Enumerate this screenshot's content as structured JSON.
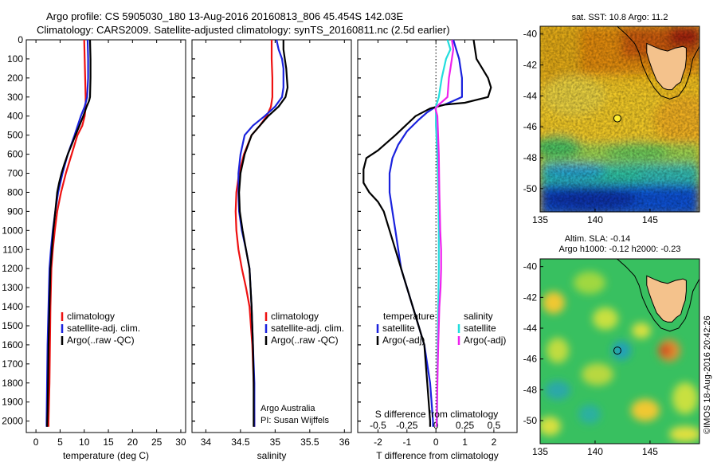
{
  "header": {
    "line1": "Argo profile: CS 5905030_180 13-Aug-2016 20160813_806 45.454S 142.03E",
    "line2": "Climatology: CARS2009. Satellite-adjusted climatology: synTS_20160811.nc (2.5d earlier)"
  },
  "colors": {
    "climatology": "#ee1111",
    "satellite": "#1a22dd",
    "argo": "#000000",
    "salinity_satellite": "#22dddd",
    "salinity_argo": "#ee22ee"
  },
  "chart_data": [
    {
      "type": "line",
      "name": "temperature-profile",
      "xlabel": "temperature (deg C)",
      "ylabel": "",
      "xlim": [
        -2,
        31
      ],
      "ylim": [
        2060,
        0
      ],
      "xticks": [
        0,
        5,
        10,
        15,
        20,
        25,
        30
      ],
      "yticks": [
        0,
        100,
        200,
        300,
        400,
        500,
        600,
        700,
        800,
        900,
        1000,
        1100,
        1200,
        1300,
        1400,
        1500,
        1600,
        1700,
        1800,
        1900,
        2000
      ],
      "legend": [
        "climatology",
        "satellite-adj. clim.",
        "Argo(..raw -QC)"
      ],
      "legend_position": "lower-right",
      "series": [
        {
          "name": "climatology",
          "color_key": "climatology",
          "x": [
            10.0,
            10.1,
            10.2,
            10.3,
            10.3,
            10.1,
            9.6,
            8.6,
            7.4,
            6.2,
            5.2,
            4.4,
            3.9,
            3.5,
            3.2,
            3.0,
            2.9,
            2.8,
            2.7,
            2.6,
            2.6
          ],
          "y": [
            0,
            100,
            200,
            300,
            350,
            400,
            450,
            500,
            600,
            700,
            800,
            900,
            1000,
            1100,
            1200,
            1400,
            1600,
            1800,
            1900,
            2000,
            2030
          ]
        },
        {
          "name": "satellite-adj. clim.",
          "color_key": "satellite",
          "x": [
            10.7,
            10.8,
            10.8,
            10.6,
            10.1,
            9.3,
            8.0,
            6.6,
            5.5,
            4.6,
            4.0,
            3.5,
            3.1,
            2.8,
            2.6,
            2.4,
            2.3,
            2.2,
            2.2
          ],
          "y": [
            0,
            100,
            200,
            300,
            350,
            400,
            500,
            600,
            700,
            800,
            900,
            1000,
            1100,
            1200,
            1400,
            1600,
            1800,
            2000,
            2030
          ]
        },
        {
          "name": "Argo(..raw -QC)",
          "color_key": "argo",
          "x": [
            11.2,
            11.3,
            11.3,
            11.2,
            11.0,
            10.5,
            9.8,
            9.0,
            8.2,
            7.4,
            6.6,
            5.9,
            5.3,
            4.8,
            4.4,
            4.0,
            3.6,
            3.3,
            3.0,
            2.8,
            2.6,
            2.5,
            2.4,
            2.3
          ],
          "y": [
            0,
            100,
            200,
            300,
            320,
            350,
            400,
            450,
            500,
            550,
            600,
            650,
            700,
            750,
            800,
            900,
            1000,
            1100,
            1200,
            1400,
            1600,
            1800,
            1950,
            2030
          ]
        }
      ]
    },
    {
      "type": "line",
      "name": "salinity-profile",
      "xlabel": "salinity",
      "xlim": [
        33.8,
        36.1
      ],
      "ylim": [
        2060,
        0
      ],
      "xticks": [
        34,
        34.5,
        35,
        35.5,
        36
      ],
      "legend": [
        "climatology",
        "satellite-adj. clim.",
        "Argo(..raw -QC)"
      ],
      "legend_position": "lower-right",
      "annotation": [
        "Argo Australia",
        "PI: Susan Wijffels"
      ],
      "series": [
        {
          "name": "climatology",
          "color_key": "climatology",
          "x": [
            34.95,
            34.95,
            34.96,
            34.96,
            34.94,
            34.88,
            34.78,
            34.66,
            34.55,
            34.48,
            34.44,
            34.43,
            34.44,
            34.47,
            34.52,
            34.58,
            34.63,
            34.67,
            34.69,
            34.7,
            34.7
          ],
          "y": [
            0,
            100,
            200,
            300,
            350,
            400,
            450,
            500,
            600,
            700,
            800,
            900,
            1000,
            1100,
            1200,
            1300,
            1400,
            1600,
            1800,
            2000,
            2030
          ]
        },
        {
          "name": "satellite-adj. clim.",
          "color_key": "satellite",
          "x": [
            35.02,
            35.05,
            35.1,
            35.12,
            35.12,
            35.1,
            35.0,
            34.85,
            34.68,
            34.56,
            34.5,
            34.47,
            34.47,
            34.48,
            34.52,
            34.58,
            34.63,
            34.66,
            34.68,
            34.7,
            34.7
          ],
          "y": [
            0,
            50,
            100,
            150,
            250,
            300,
            350,
            400,
            450,
            500,
            600,
            700,
            800,
            900,
            1000,
            1100,
            1200,
            1400,
            1600,
            1800,
            2030
          ]
        },
        {
          "name": "Argo(..raw -QC)",
          "color_key": "argo",
          "x": [
            35.12,
            35.12,
            35.14,
            35.16,
            35.17,
            35.18,
            35.15,
            35.05,
            34.9,
            34.78,
            34.66,
            34.56,
            34.5,
            34.48,
            34.49,
            34.53,
            34.58,
            34.63,
            34.66,
            34.68,
            34.69,
            34.69
          ],
          "y": [
            0,
            50,
            100,
            150,
            200,
            250,
            300,
            350,
            400,
            450,
            500,
            600,
            700,
            800,
            900,
            1000,
            1100,
            1200,
            1400,
            1600,
            1800,
            2030
          ]
        }
      ]
    },
    {
      "type": "line",
      "name": "difference-profile",
      "xlabel": "T difference from climatology",
      "top_label": "S difference from climatology",
      "xlim": [
        -2.7,
        2.8
      ],
      "ylim": [
        2060,
        0
      ],
      "xticks": [
        -2,
        -1,
        0,
        1,
        2
      ],
      "xticks_top": [
        -0.5,
        -0.25,
        0,
        0.25,
        0.5
      ],
      "xticklabels_top": [
        "-0.5",
        "-0.25",
        "0",
        "0.25",
        "0.5"
      ],
      "legend_left": {
        "heading": "temperature",
        "items": [
          "satellite",
          "Argo(-adj)"
        ]
      },
      "legend_right": {
        "heading": "salinity",
        "items": [
          "satellite",
          "Argo(-adj)"
        ]
      },
      "series": [
        {
          "name": "temperature satellite",
          "color_key": "satellite",
          "x": [
            0.6,
            0.8,
            0.9,
            0.9,
            0.6,
            0.3,
            0.0,
            -0.3,
            -0.6,
            -1.0,
            -1.3,
            -1.5,
            -1.6,
            -1.6,
            -1.5,
            -1.4,
            -1.3,
            -1.2,
            -1.0,
            -0.8,
            -0.6,
            -0.4,
            -0.2,
            -0.1,
            -0.1
          ],
          "y": [
            0,
            100,
            200,
            300,
            320,
            340,
            350,
            380,
            420,
            480,
            550,
            620,
            700,
            800,
            900,
            1000,
            1100,
            1200,
            1300,
            1400,
            1500,
            1600,
            1800,
            2000,
            2030
          ]
        },
        {
          "name": "temperature Argo(-adj)",
          "color_key": "argo",
          "x": [
            1.3,
            1.4,
            1.6,
            1.8,
            1.9,
            1.8,
            1.0,
            0.3,
            -0.2,
            -0.7,
            -1.4,
            -2.0,
            -2.4,
            -2.5,
            -2.5,
            -2.3,
            -2.0,
            -1.8,
            -1.6,
            -1.4,
            -1.2,
            -1.0,
            -0.8,
            -0.6,
            -0.4,
            -0.3,
            -0.2,
            -0.2
          ],
          "y": [
            0,
            100,
            150,
            200,
            250,
            300,
            330,
            340,
            360,
            400,
            500,
            580,
            620,
            680,
            750,
            800,
            850,
            900,
            1000,
            1100,
            1200,
            1300,
            1400,
            1500,
            1600,
            1800,
            2000,
            2030
          ]
        },
        {
          "name": "salinity satellite",
          "color_key": "salinity_satellite",
          "x": [
            0.4,
            0.5,
            0.35,
            0.2,
            0.1,
            0.0,
            0.0,
            0.05,
            0.08,
            0.1,
            0.1,
            0.1,
            0.08,
            0.06,
            0.05,
            0.04,
            0.03
          ],
          "y": [
            0,
            50,
            100,
            200,
            300,
            350,
            450,
            600,
            800,
            1000,
            1100,
            1200,
            1400,
            1600,
            1800,
            2000,
            2030
          ]
        },
        {
          "name": "salinity Argo(-adj)",
          "color_key": "salinity_argo",
          "x": [
            0.55,
            0.6,
            0.55,
            0.5,
            0.45,
            0.4,
            0.1,
            -0.02,
            0.05,
            0.1,
            0.12,
            0.15,
            0.18,
            0.18,
            0.16,
            0.12,
            0.08,
            0.05,
            0.03,
            0.02
          ],
          "y": [
            0,
            50,
            100,
            150,
            200,
            300,
            340,
            360,
            400,
            600,
            800,
            1000,
            1100,
            1200,
            1300,
            1400,
            1600,
            1800,
            2000,
            2030
          ]
        }
      ]
    }
  ],
  "maps": [
    {
      "name": "sst-map",
      "title": "sat. SST: 10.8 Argo: 11.2",
      "xlim": [
        135,
        149.5
      ],
      "ylim": [
        -51.5,
        -39.5
      ],
      "xticks": [
        135,
        140,
        145
      ],
      "yticks": [
        -40,
        -42,
        -44,
        -46,
        -48,
        -50
      ],
      "argo_marker": {
        "lon": 142.03,
        "lat": -45.454,
        "fill": "#ffee33"
      }
    },
    {
      "name": "sla-map",
      "title1": "Altim. SLA: -0.14",
      "title2": "Argo h1000: -0.12 h2000: -0.23",
      "xlim": [
        135,
        149.5
      ],
      "ylim": [
        -51.5,
        -39.5
      ],
      "xticks": [
        135,
        140,
        145
      ],
      "yticks": [
        -40,
        -42,
        -44,
        -46,
        -48,
        -50
      ],
      "argo_marker": {
        "lon": 142.03,
        "lat": -45.454,
        "fill": "none"
      }
    }
  ],
  "credit": "©IMOS 18-Aug-2016 20:42:26"
}
